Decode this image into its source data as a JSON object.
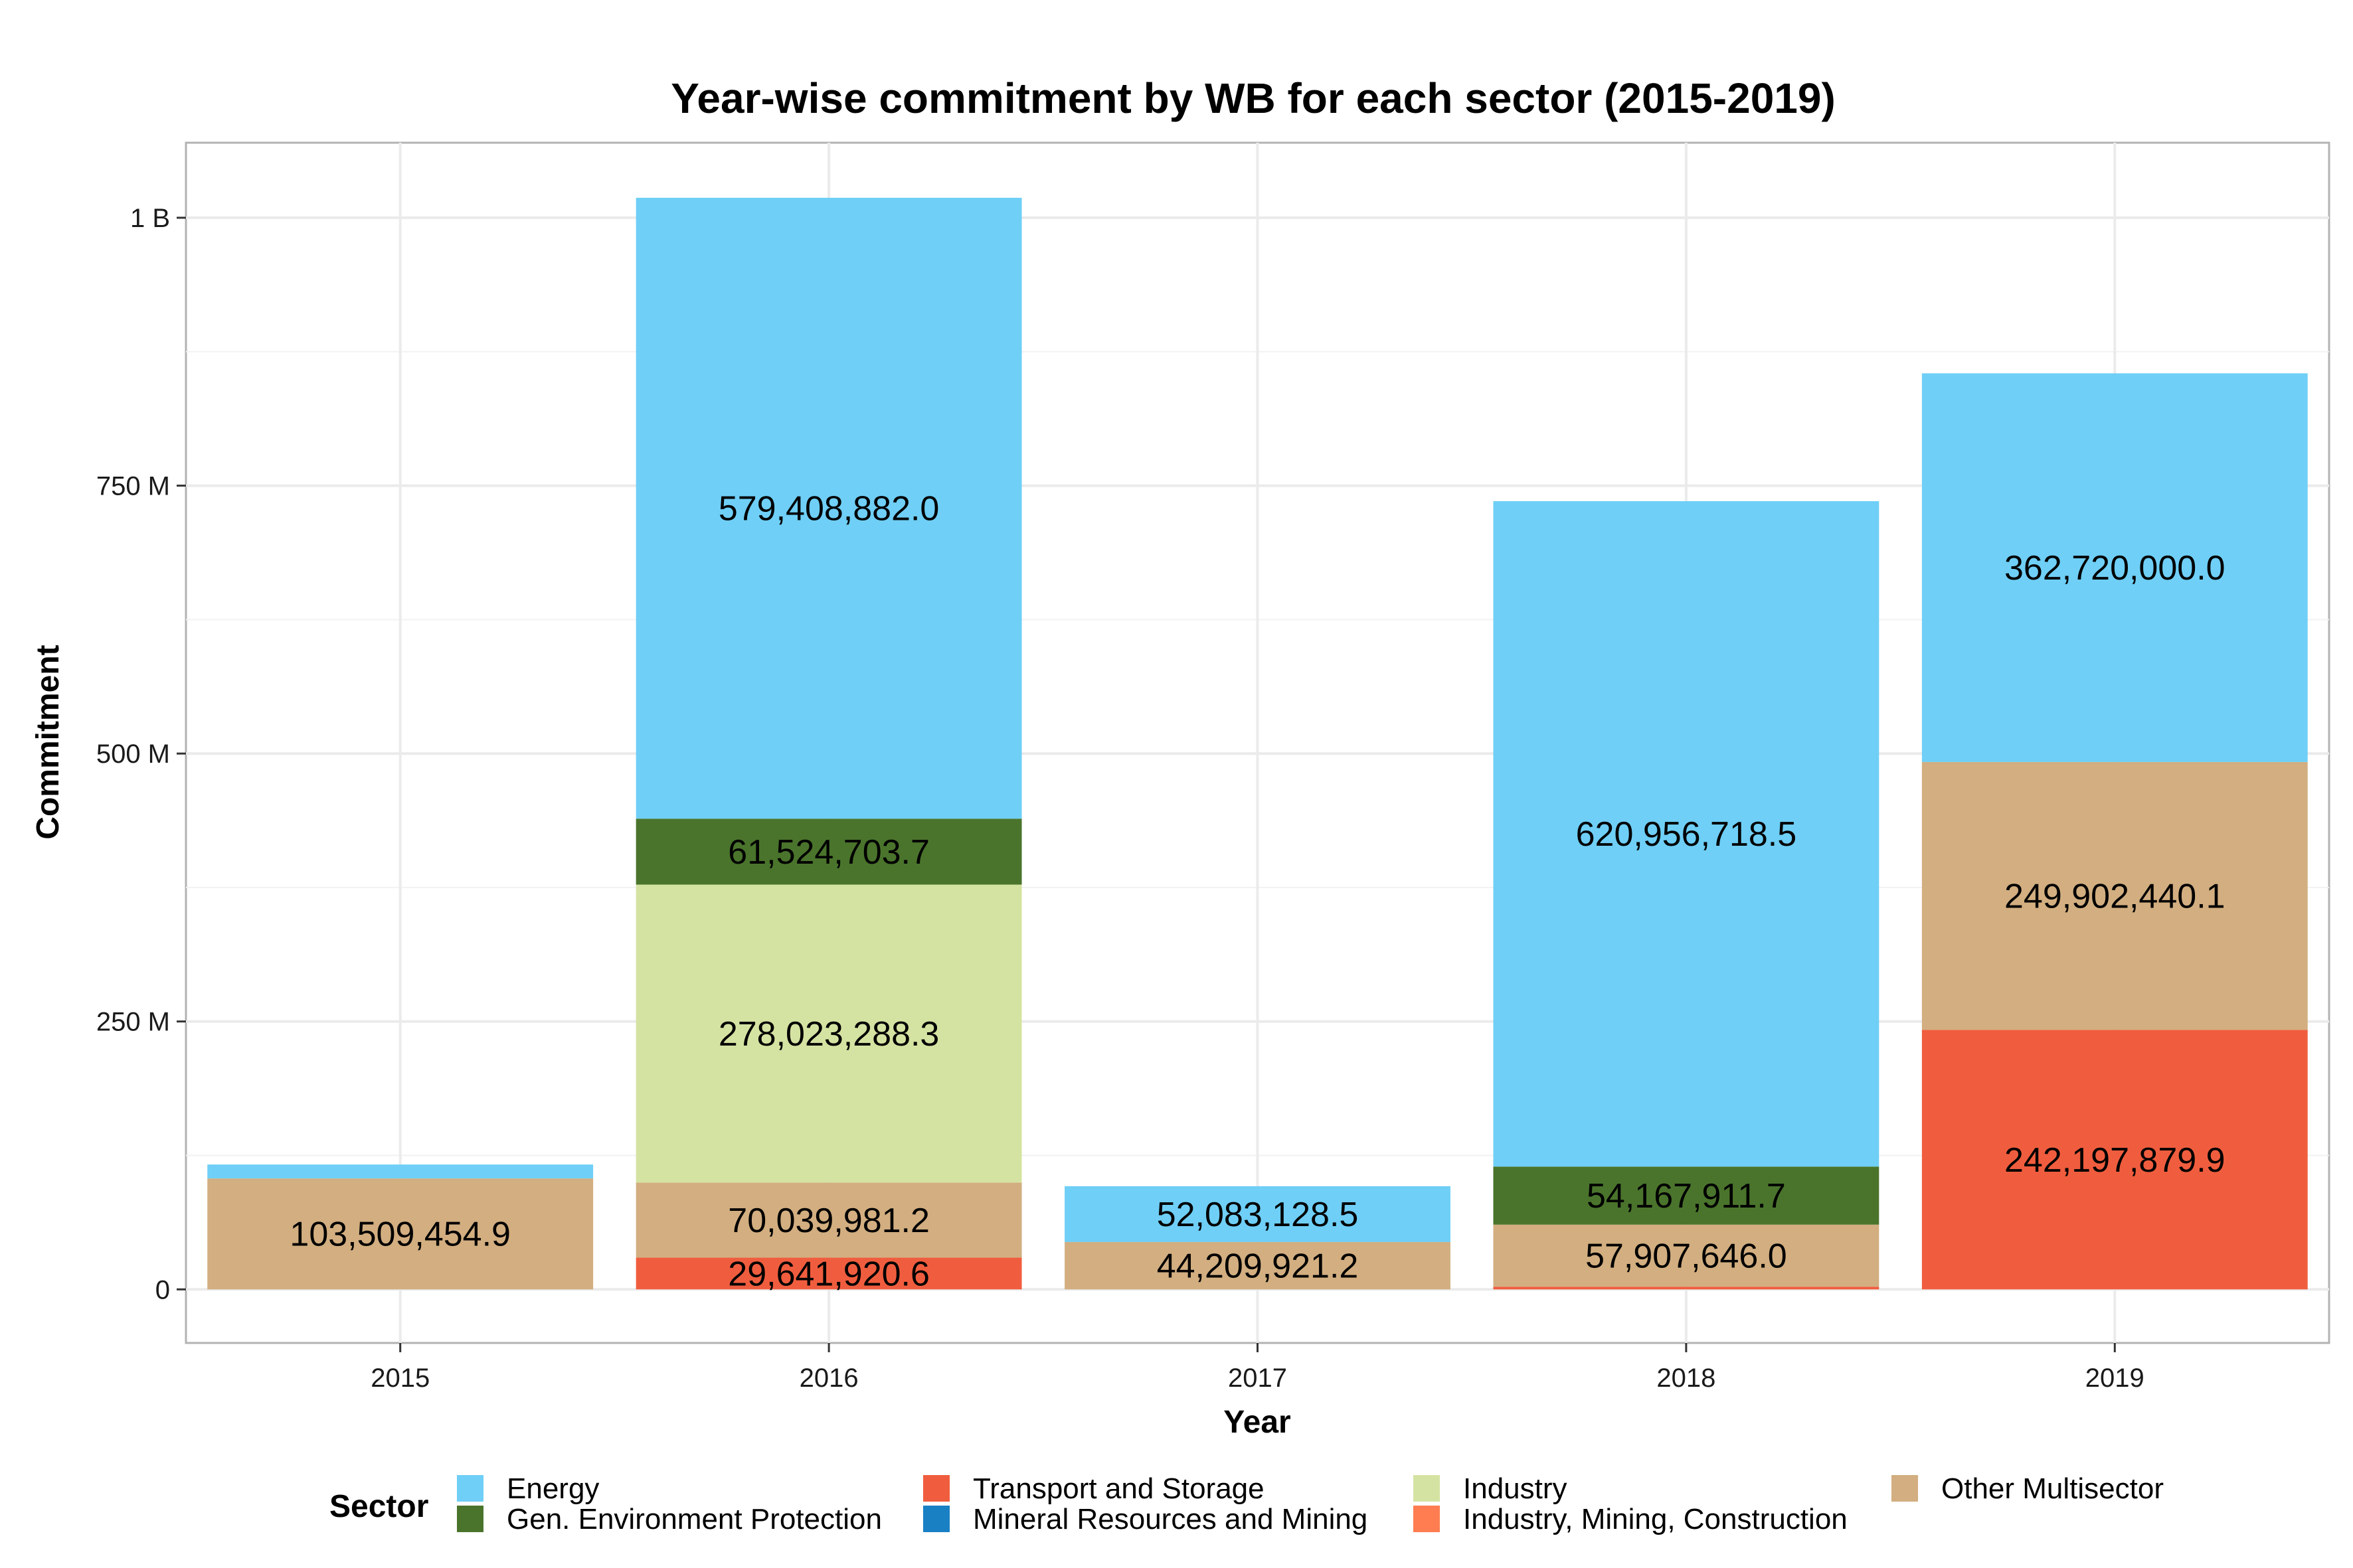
{
  "chart_data": {
    "type": "bar",
    "stacked": true,
    "title": "Year-wise commitment by WB for each sector (2015-2019)",
    "xlabel": "Year",
    "ylabel": "Commitment",
    "categories": [
      "2015",
      "2016",
      "2017",
      "2018",
      "2019"
    ],
    "ylim": [
      -50000000,
      1070000000
    ],
    "yticks": [
      {
        "value": 0,
        "label": "0"
      },
      {
        "value": 250000000,
        "label": "250 M"
      },
      {
        "value": 500000000,
        "label": "500 M"
      },
      {
        "value": 750000000,
        "label": "750 M"
      },
      {
        "value": 1000000000,
        "label": "1 B"
      }
    ],
    "grid": true,
    "legend_title": "Sector",
    "legend_position": "bottom",
    "series": [
      {
        "name": "Transport and Storage",
        "color": "#F05D3E",
        "values": [
          0,
          29641920.6,
          0,
          2500000,
          242197879.9
        ],
        "labels": [
          "",
          "29,641,920.6",
          "",
          "",
          "242,197,879.9"
        ]
      },
      {
        "name": "Other Multisector",
        "color": "#D2AE80",
        "values": [
          103509454.9,
          70039981.2,
          44209921.2,
          57907646.0,
          249902440.1
        ],
        "labels": [
          "103,509,454.9",
          "70,039,981.2",
          "44,209,921.2",
          "57,907,646.0",
          "249,902,440.1"
        ]
      },
      {
        "name": "Industry",
        "color": "#D5E3A2",
        "values": [
          0,
          278023288.3,
          0,
          0,
          0
        ],
        "labels": [
          "",
          "278,023,288.3",
          "",
          "",
          ""
        ]
      },
      {
        "name": "Gen. Environment Protection",
        "color": "#4A742C",
        "values": [
          0,
          61524703.7,
          0,
          54167911.7,
          0
        ],
        "labels": [
          "",
          "61,524,703.7",
          "",
          "54,167,911.7",
          ""
        ]
      },
      {
        "name": "Energy",
        "color": "#6FCFF6",
        "values": [
          13000000,
          579408882.0,
          52083128.5,
          620956718.5,
          362720000.0
        ],
        "labels": [
          "",
          "579,408,882.0",
          "52,083,128.5",
          "620,956,718.5",
          "362,720,000.0"
        ]
      }
    ],
    "legend": [
      {
        "name": "Energy",
        "color": "#6FCFF6"
      },
      {
        "name": "Gen. Environment Protection",
        "color": "#4A742C"
      },
      {
        "name": "Transport and Storage",
        "color": "#F05D3E"
      },
      {
        "name": "Mineral Resources and Mining",
        "color": "#1A80C4"
      },
      {
        "name": "Industry",
        "color": "#D5E3A2"
      },
      {
        "name": "Industry, Mining, Construction",
        "color": "#FF7D50"
      },
      {
        "name": "Other Multisector",
        "color": "#D2AE80"
      }
    ]
  }
}
